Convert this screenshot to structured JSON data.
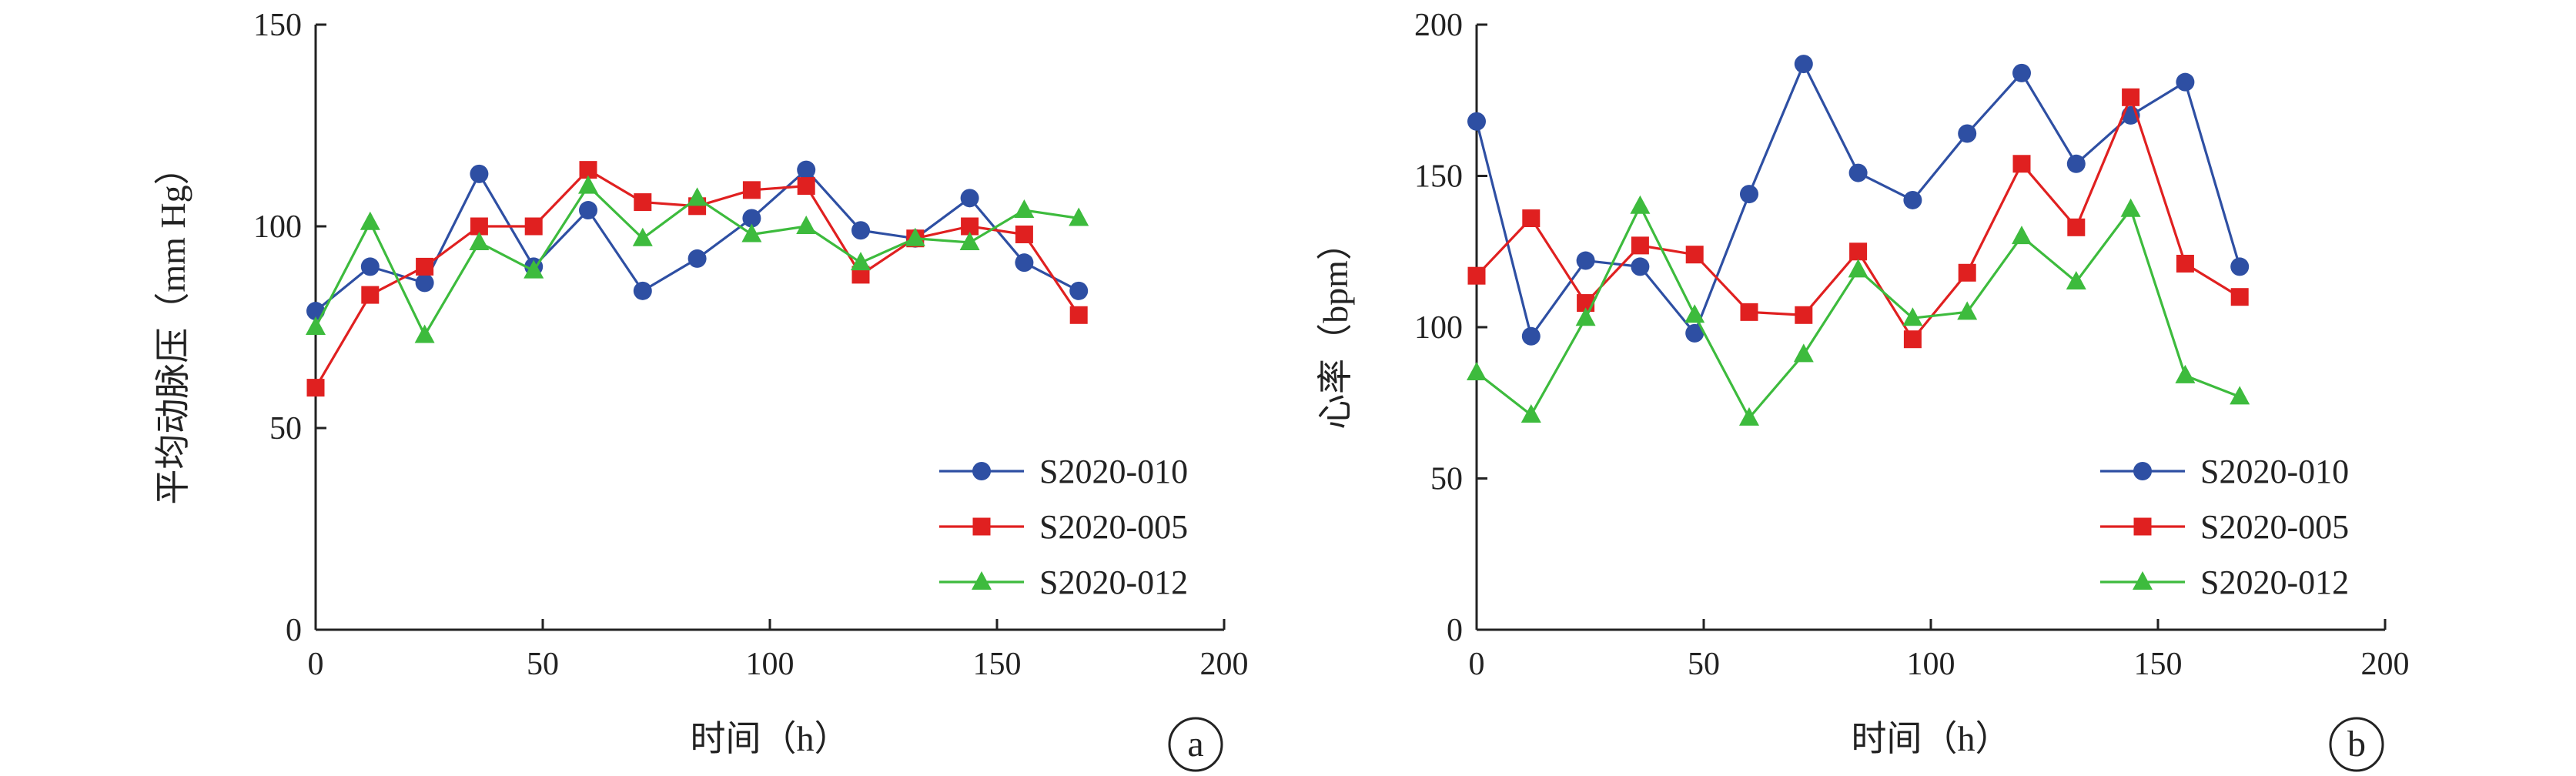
{
  "colors": {
    "S2020-010": "#2e4fa3",
    "S2020-005": "#e02020",
    "S2020-012": "#3dbb3d",
    "axis": "#222222"
  },
  "chart_data": [
    {
      "type": "line",
      "panel_label": "a",
      "xlabel": "时间（h）",
      "ylabel": "平均动脉压（mm Hg）",
      "xlim": [
        0,
        200
      ],
      "ylim": [
        0,
        150
      ],
      "xticks": [
        0,
        50,
        100,
        150,
        200
      ],
      "yticks": [
        0,
        50,
        100,
        150
      ],
      "x": [
        0,
        12,
        24,
        36,
        48,
        60,
        72,
        84,
        96,
        108,
        120,
        132,
        144,
        156,
        168
      ],
      "legend_position": "bottom-right",
      "series": [
        {
          "name": "S2020-010",
          "marker": "circle",
          "values": [
            79,
            90,
            86,
            113,
            90,
            104,
            84,
            92,
            102,
            114,
            99,
            97,
            107,
            91,
            84
          ]
        },
        {
          "name": "S2020-005",
          "marker": "square",
          "values": [
            60,
            83,
            90,
            100,
            100,
            114,
            106,
            105,
            109,
            110,
            88,
            97,
            100,
            98,
            78
          ]
        },
        {
          "name": "S2020-012",
          "marker": "triangle",
          "values": [
            75,
            101,
            73,
            96,
            89,
            110,
            97,
            107,
            98,
            100,
            91,
            97,
            96,
            104,
            102
          ]
        }
      ]
    },
    {
      "type": "line",
      "panel_label": "b",
      "xlabel": "时间（h）",
      "ylabel": "心率（bpm）",
      "xlim": [
        0,
        200
      ],
      "ylim": [
        0,
        200
      ],
      "xticks": [
        0,
        50,
        100,
        150,
        200
      ],
      "yticks": [
        0,
        50,
        100,
        150,
        200
      ],
      "x": [
        0,
        12,
        24,
        36,
        48,
        60,
        72,
        84,
        96,
        108,
        120,
        132,
        144,
        156,
        168
      ],
      "legend_position": "bottom-right",
      "series": [
        {
          "name": "S2020-010",
          "marker": "circle",
          "values": [
            168,
            97,
            122,
            120,
            98,
            144,
            187,
            151,
            142,
            164,
            184,
            154,
            170,
            181,
            120
          ]
        },
        {
          "name": "S2020-005",
          "marker": "square",
          "values": [
            117,
            136,
            108,
            127,
            124,
            105,
            104,
            125,
            96,
            118,
            154,
            133,
            176,
            121,
            110
          ]
        },
        {
          "name": "S2020-012",
          "marker": "triangle",
          "values": [
            85,
            71,
            103,
            140,
            104,
            70,
            91,
            119,
            103,
            105,
            130,
            115,
            139,
            84,
            77
          ]
        }
      ]
    }
  ]
}
